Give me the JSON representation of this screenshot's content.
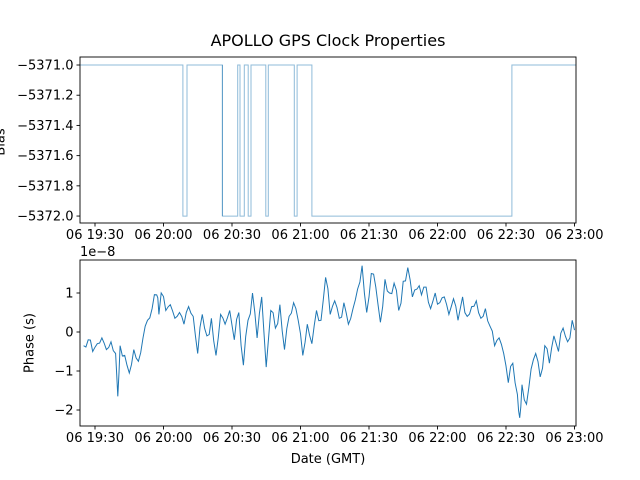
{
  "figure": {
    "title": "APOLLO GPS Clock Properties",
    "background": "#ffffff",
    "axis_color": "#000000"
  },
  "labels": {
    "xlabel": "Date (GMT)",
    "bottom_ylabel": "Phase (s)",
    "offset_text": "1e−8",
    "top_ylabel_clipped": "Bias"
  },
  "chart_data": [
    {
      "type": "line",
      "subtype": "step",
      "title": "APOLLO GPS Clock Properties",
      "ylabel": "Bias (clipped at figure edge)",
      "line_color": "#1f77b4",
      "line_alpha": 0.5,
      "x_axis": {
        "tick_minutes": [
          30,
          60,
          90,
          120,
          150,
          180,
          210,
          240
        ],
        "tick_labels": [
          "06 19:30",
          "06 20:00",
          "06 20:30",
          "06 21:00",
          "06 21:30",
          "06 22:00",
          "06 22:30",
          "06 23:00"
        ],
        "range_minutes": [
          23.43,
          240.66
        ],
        "note": "minutes after 06 19:00 GMT"
      },
      "y_axis": {
        "tick_values": [
          -5371.0,
          -5371.2,
          -5371.4,
          -5371.6,
          -5371.8,
          -5372.0
        ],
        "tick_labels": [
          "−5371.0",
          "−5371.2",
          "−5371.4",
          "−5371.6",
          "−5371.8",
          "−5372.0"
        ],
        "range": [
          -5372.046,
          -5370.947
        ]
      },
      "steps": [
        [
          23.43,
          -5371.0
        ],
        [
          68.5,
          -5372.0
        ],
        [
          70.3,
          -5371.0
        ],
        [
          85.8,
          -5372.0
        ],
        [
          92.5,
          -5371.0
        ],
        [
          93.5,
          -5372.0
        ],
        [
          95.4,
          -5371.0
        ],
        [
          97.1,
          -5372.0
        ],
        [
          98.3,
          -5371.0
        ],
        [
          104.8,
          -5372.0
        ],
        [
          105.9,
          -5371.0
        ],
        [
          117.3,
          -5372.0
        ],
        [
          118.5,
          -5371.0
        ],
        [
          125.0,
          -5372.0
        ],
        [
          212.6,
          -5371.0
        ]
      ],
      "end_minute": 240.66,
      "overdraw_minutes": [
        85.8
      ]
    },
    {
      "type": "line",
      "xlabel": "Date (GMT)",
      "ylabel": "Phase (s)",
      "offset_text": "1e−8",
      "scale": "1e-8 seconds",
      "line_color": "#1f77b4",
      "line_alpha": 1,
      "x_axis": {
        "tick_minutes": [
          30,
          60,
          90,
          120,
          150,
          180,
          210,
          240
        ],
        "tick_labels": [
          "06 19:30",
          "06 20:00",
          "06 20:30",
          "06 21:00",
          "06 21:30",
          "06 22:00",
          "06 22:30",
          "06 23:00"
        ],
        "range_minutes": [
          23.43,
          240.66
        ],
        "note": "minutes after 06 19:00 GMT"
      },
      "y_axis": {
        "tick_values": [
          1,
          0,
          -1,
          -2
        ],
        "tick_labels": [
          "1",
          "0",
          "−1",
          "−2"
        ],
        "range": [
          -2.41,
          1.846
        ]
      },
      "points_t_min": [
        25,
        27,
        29,
        31,
        33,
        35,
        37,
        39,
        40,
        41,
        43,
        45,
        47,
        49,
        51,
        53,
        55,
        57,
        58,
        59,
        61,
        63,
        65,
        67,
        69,
        71,
        73,
        75,
        77,
        79,
        81,
        83,
        85,
        87,
        89,
        91,
        93,
        95,
        97,
        99,
        101,
        103,
        105,
        107,
        109,
        111,
        113,
        115,
        117,
        119,
        121,
        123,
        125,
        127,
        129,
        131,
        133,
        135,
        137,
        139,
        141,
        143,
        145,
        147,
        149,
        151,
        153,
        155,
        157,
        159,
        161,
        163,
        165,
        167,
        169,
        171,
        173,
        175,
        177,
        179,
        181,
        183,
        185,
        187,
        189,
        191,
        193,
        195,
        197,
        199,
        201,
        203,
        205,
        207,
        209,
        211,
        213,
        215,
        216,
        217,
        219,
        221,
        223,
        225,
        227,
        229,
        231,
        233,
        235,
        237,
        239,
        240
      ],
      "points_value_1e8": [
        -0.35,
        -0.2,
        -0.5,
        -0.3,
        -0.15,
        -0.45,
        -0.25,
        -0.55,
        -1.65,
        -0.35,
        -0.6,
        -1.05,
        -0.45,
        -0.75,
        -0.15,
        0.3,
        0.6,
        0.95,
        0.45,
        1.0,
        0.55,
        0.7,
        0.35,
        0.5,
        0.2,
        0.65,
        0.4,
        -0.55,
        0.45,
        -0.1,
        0.35,
        -0.6,
        0.45,
        0.2,
        0.55,
        -0.2,
        0.5,
        -0.85,
        0.3,
        1.0,
        -0.15,
        0.9,
        -0.9,
        0.55,
        0.1,
        0.7,
        -0.45,
        0.4,
        0.75,
        0.3,
        -0.6,
        0.2,
        -0.3,
        0.55,
        0.3,
        1.4,
        0.45,
        0.8,
        0.35,
        0.75,
        0.2,
        0.6,
        1.1,
        1.7,
        0.5,
        1.5,
        1.15,
        0.25,
        1.35,
        1.0,
        1.25,
        0.55,
        1.3,
        1.65,
        0.9,
        1.1,
        0.95,
        1.15,
        0.6,
        1.0,
        0.75,
        0.9,
        0.45,
        0.85,
        0.3,
        0.9,
        0.4,
        0.65,
        0.8,
        0.35,
        0.6,
        0.15,
        -0.35,
        -0.15,
        -0.55,
        -1.3,
        -0.8,
        -1.6,
        -2.2,
        -1.35,
        -1.85,
        -0.95,
        -0.55,
        -1.15,
        -0.35,
        -0.8,
        -0.1,
        -0.5,
        0.1,
        -0.25,
        0.3,
        0.05
      ]
    }
  ]
}
